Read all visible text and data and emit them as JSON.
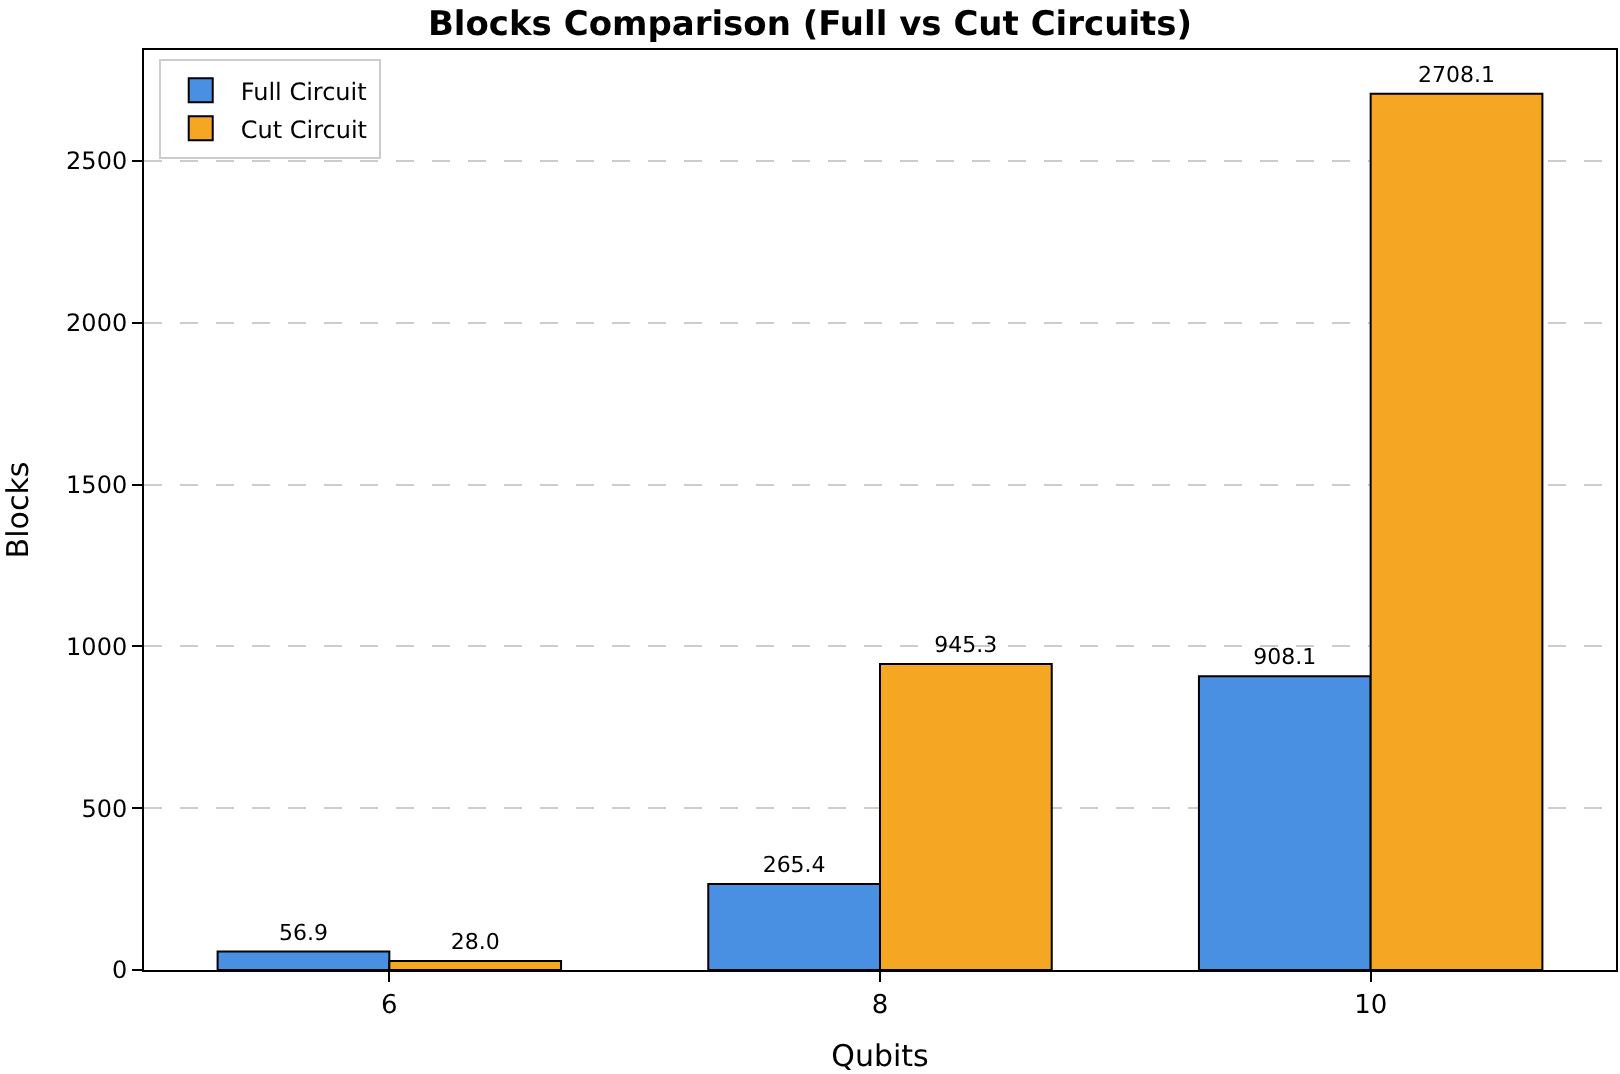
{
  "chart_data": {
    "type": "bar",
    "title": "Blocks Comparison (Full vs Cut Circuits)",
    "xlabel": "Qubits",
    "ylabel": "Blocks",
    "categories": [
      "6",
      "8",
      "10"
    ],
    "series": [
      {
        "name": "Full Circuit",
        "color": "#4a90e2",
        "values": [
          56.9,
          265.4,
          908.1
        ],
        "value_labels": [
          "56.9",
          "265.4",
          "908.1"
        ]
      },
      {
        "name": "Cut Circuit",
        "color": "#f5a623",
        "values": [
          28.0,
          945.3,
          2708.1
        ],
        "value_labels": [
          "28.0",
          "945.3",
          "2708.1"
        ]
      }
    ],
    "ylim": [
      0,
      2843
    ],
    "yticks": [
      0,
      500,
      1000,
      1500,
      2000,
      2500
    ],
    "grid": "y",
    "legend": "top left"
  }
}
